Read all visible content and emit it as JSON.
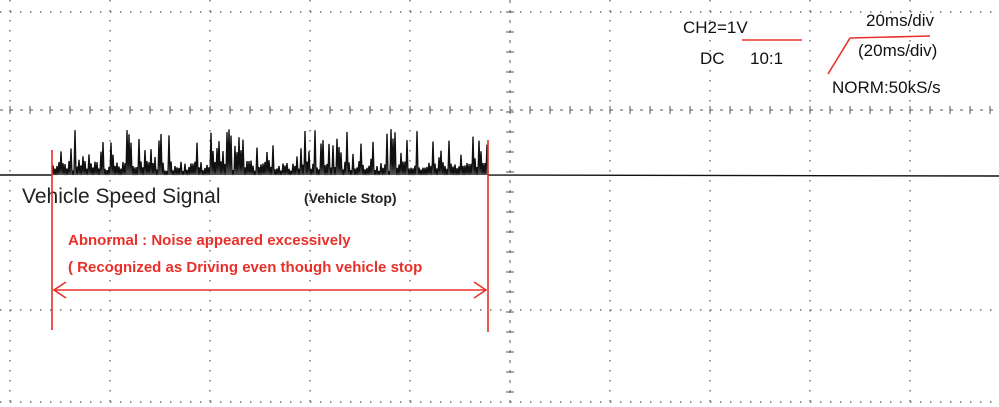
{
  "scope": {
    "channel": "CH2=1V",
    "coupling": "DC",
    "probe": "10:1",
    "timebase": "20ms/div",
    "timebase_detail": "(20ms/div)",
    "mode": "NORM:50kS/s"
  },
  "annotations": {
    "signal_label": "Vehicle Speed Signal",
    "signal_state": "(Vehicle Stop)",
    "abnormal": "Abnormal : Noise  appeared excessively",
    "note": "( Recognized as Driving even though vehicle stop"
  }
}
